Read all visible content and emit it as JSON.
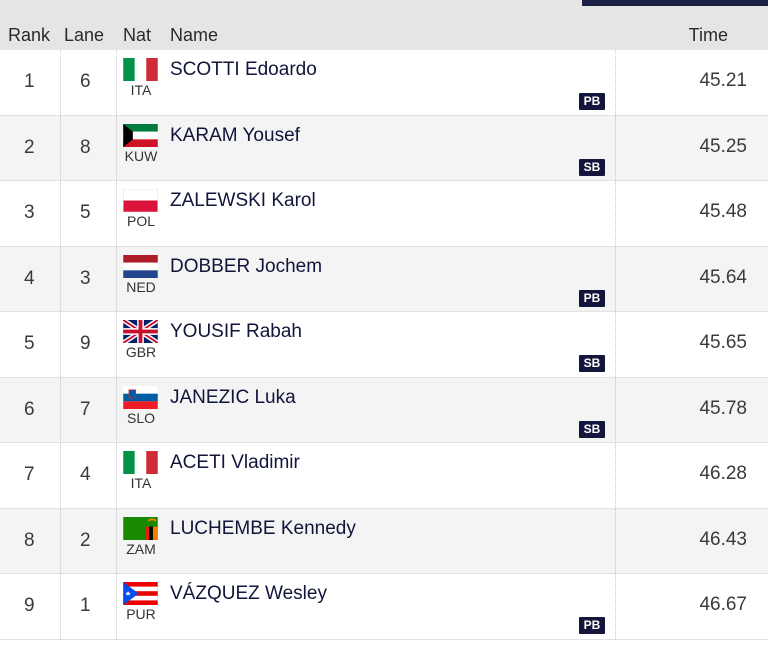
{
  "header": {
    "rank": "Rank",
    "lane": "Lane",
    "nat": "Nat",
    "name": "Name",
    "time": "Time"
  },
  "rows": [
    {
      "rank": "1",
      "lane": "6",
      "nat": "ITA",
      "flag": "italy-flag-icon",
      "name": "SCOTTI Edoardo",
      "badge": "PB",
      "time": "45.21"
    },
    {
      "rank": "2",
      "lane": "8",
      "nat": "KUW",
      "flag": "kuwait-flag-icon",
      "name": "KARAM Yousef",
      "badge": "SB",
      "time": "45.25"
    },
    {
      "rank": "3",
      "lane": "5",
      "nat": "POL",
      "flag": "poland-flag-icon",
      "name": "ZALEWSKI Karol",
      "badge": "",
      "time": "45.48"
    },
    {
      "rank": "4",
      "lane": "3",
      "nat": "NED",
      "flag": "netherlands-flag-icon",
      "name": "DOBBER Jochem",
      "badge": "PB",
      "time": "45.64"
    },
    {
      "rank": "5",
      "lane": "9",
      "nat": "GBR",
      "flag": "uk-flag-icon",
      "name": "YOUSIF Rabah",
      "badge": "SB",
      "time": "45.65"
    },
    {
      "rank": "6",
      "lane": "7",
      "nat": "SLO",
      "flag": "slovenia-flag-icon",
      "name": "JANEZIC Luka",
      "badge": "SB",
      "time": "45.78"
    },
    {
      "rank": "7",
      "lane": "4",
      "nat": "ITA",
      "flag": "italy-flag-icon",
      "name": "ACETI Vladimir",
      "badge": "",
      "time": "46.28"
    },
    {
      "rank": "8",
      "lane": "2",
      "nat": "ZAM",
      "flag": "zambia-flag-icon",
      "name": "LUCHEMBE Kennedy",
      "badge": "",
      "time": "46.43"
    },
    {
      "rank": "9",
      "lane": "1",
      "nat": "PUR",
      "flag": "puerto-rico-flag-icon",
      "name": "VÁZQUEZ Wesley",
      "badge": "PB",
      "time": "46.67"
    }
  ],
  "colors": {
    "badge_bg": "#14173b",
    "header_bg": "#e5e5e5",
    "alt_row_bg": "#f4f4f4"
  }
}
